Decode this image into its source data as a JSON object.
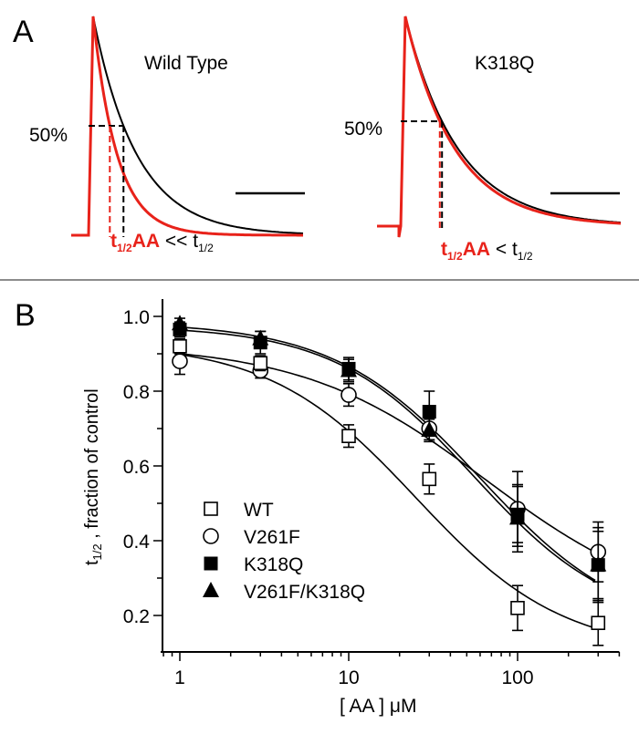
{
  "figure": {
    "divider_color": "#8c8c8c",
    "trace_colors": {
      "control": "#000000",
      "aa": "#e8221a"
    }
  },
  "panel_a": {
    "letter": "A",
    "subpanels": [
      {
        "title": "Wild Type",
        "percent_label": "50%",
        "annotation": {
          "aa_main": "t",
          "aa_sub": "1/2",
          "aa_suffix": "AA",
          "relation": " << ",
          "ctrl_main": "t",
          "ctrl_sub": "1/2"
        },
        "tau_control": 1.0,
        "tau_aa": 0.55
      },
      {
        "title": "K318Q",
        "percent_label": "50%",
        "annotation": {
          "aa_main": "t",
          "aa_sub": "1/2",
          "aa_suffix": "AA",
          "relation": " < ",
          "ctrl_main": "t",
          "ctrl_sub": "1/2"
        },
        "tau_control": 1.0,
        "tau_aa": 0.94
      }
    ]
  },
  "panel_b": {
    "letter": "B"
  },
  "chart_data": {
    "type": "scatter",
    "xscale": "log",
    "xlabel": "[ AA ] μM",
    "ylabel_main": "t",
    "ylabel_sub": "1/2",
    "ylabel_rest": " , fraction of control",
    "xlim": [
      0.8,
      400
    ],
    "ylim": [
      0.1,
      1.05
    ],
    "xticks": [
      1,
      10,
      100
    ],
    "xtick_labels": [
      "1",
      "10",
      "100"
    ],
    "yticks": [
      0.2,
      0.4,
      0.6,
      0.8,
      1.0
    ],
    "ytick_labels": [
      "0.2",
      "0.4",
      "0.6",
      "0.8",
      "1.0"
    ],
    "grid": false,
    "legend_position": "bottom-left",
    "x": [
      1,
      3,
      10,
      30,
      100,
      300
    ],
    "series": [
      {
        "name": "WT",
        "marker": "open-square",
        "values": [
          0.92,
          0.875,
          0.68,
          0.565,
          0.22,
          0.18
        ],
        "errors": [
          0.02,
          0.02,
          0.03,
          0.04,
          0.06,
          0.06
        ],
        "fit": {
          "top": 0.93,
          "bottom": 0.1,
          "ic50": 25,
          "hill": 1.0
        }
      },
      {
        "name": "V261F",
        "marker": "open-circle",
        "values": [
          0.88,
          0.855,
          0.79,
          0.7,
          0.485,
          0.37
        ],
        "errors": [
          0.035,
          0.02,
          0.03,
          0.03,
          0.1,
          0.08
        ],
        "fit": {
          "top": 0.925,
          "bottom": 0.2,
          "ic50": 65,
          "hill": 0.8
        }
      },
      {
        "name": "K318Q",
        "marker": "filled-square",
        "values": [
          0.965,
          0.93,
          0.86,
          0.745,
          0.47,
          0.335
        ],
        "errors": [
          0.02,
          0.03,
          0.03,
          0.055,
          0.075,
          0.1
        ],
        "fit": {
          "top": 0.985,
          "bottom": 0.15,
          "ic50": 60,
          "hill": 1.0
        }
      },
      {
        "name": "V261F/K318Q",
        "marker": "filled-triangle",
        "values": [
          0.98,
          0.94,
          0.855,
          0.695,
          0.46,
          0.335
        ],
        "errors": [
          0.015,
          0.02,
          0.03,
          0.03,
          0.09,
          0.09
        ],
        "fit": {
          "top": 0.975,
          "bottom": 0.17,
          "ic50": 55,
          "hill": 1.05
        }
      }
    ]
  }
}
